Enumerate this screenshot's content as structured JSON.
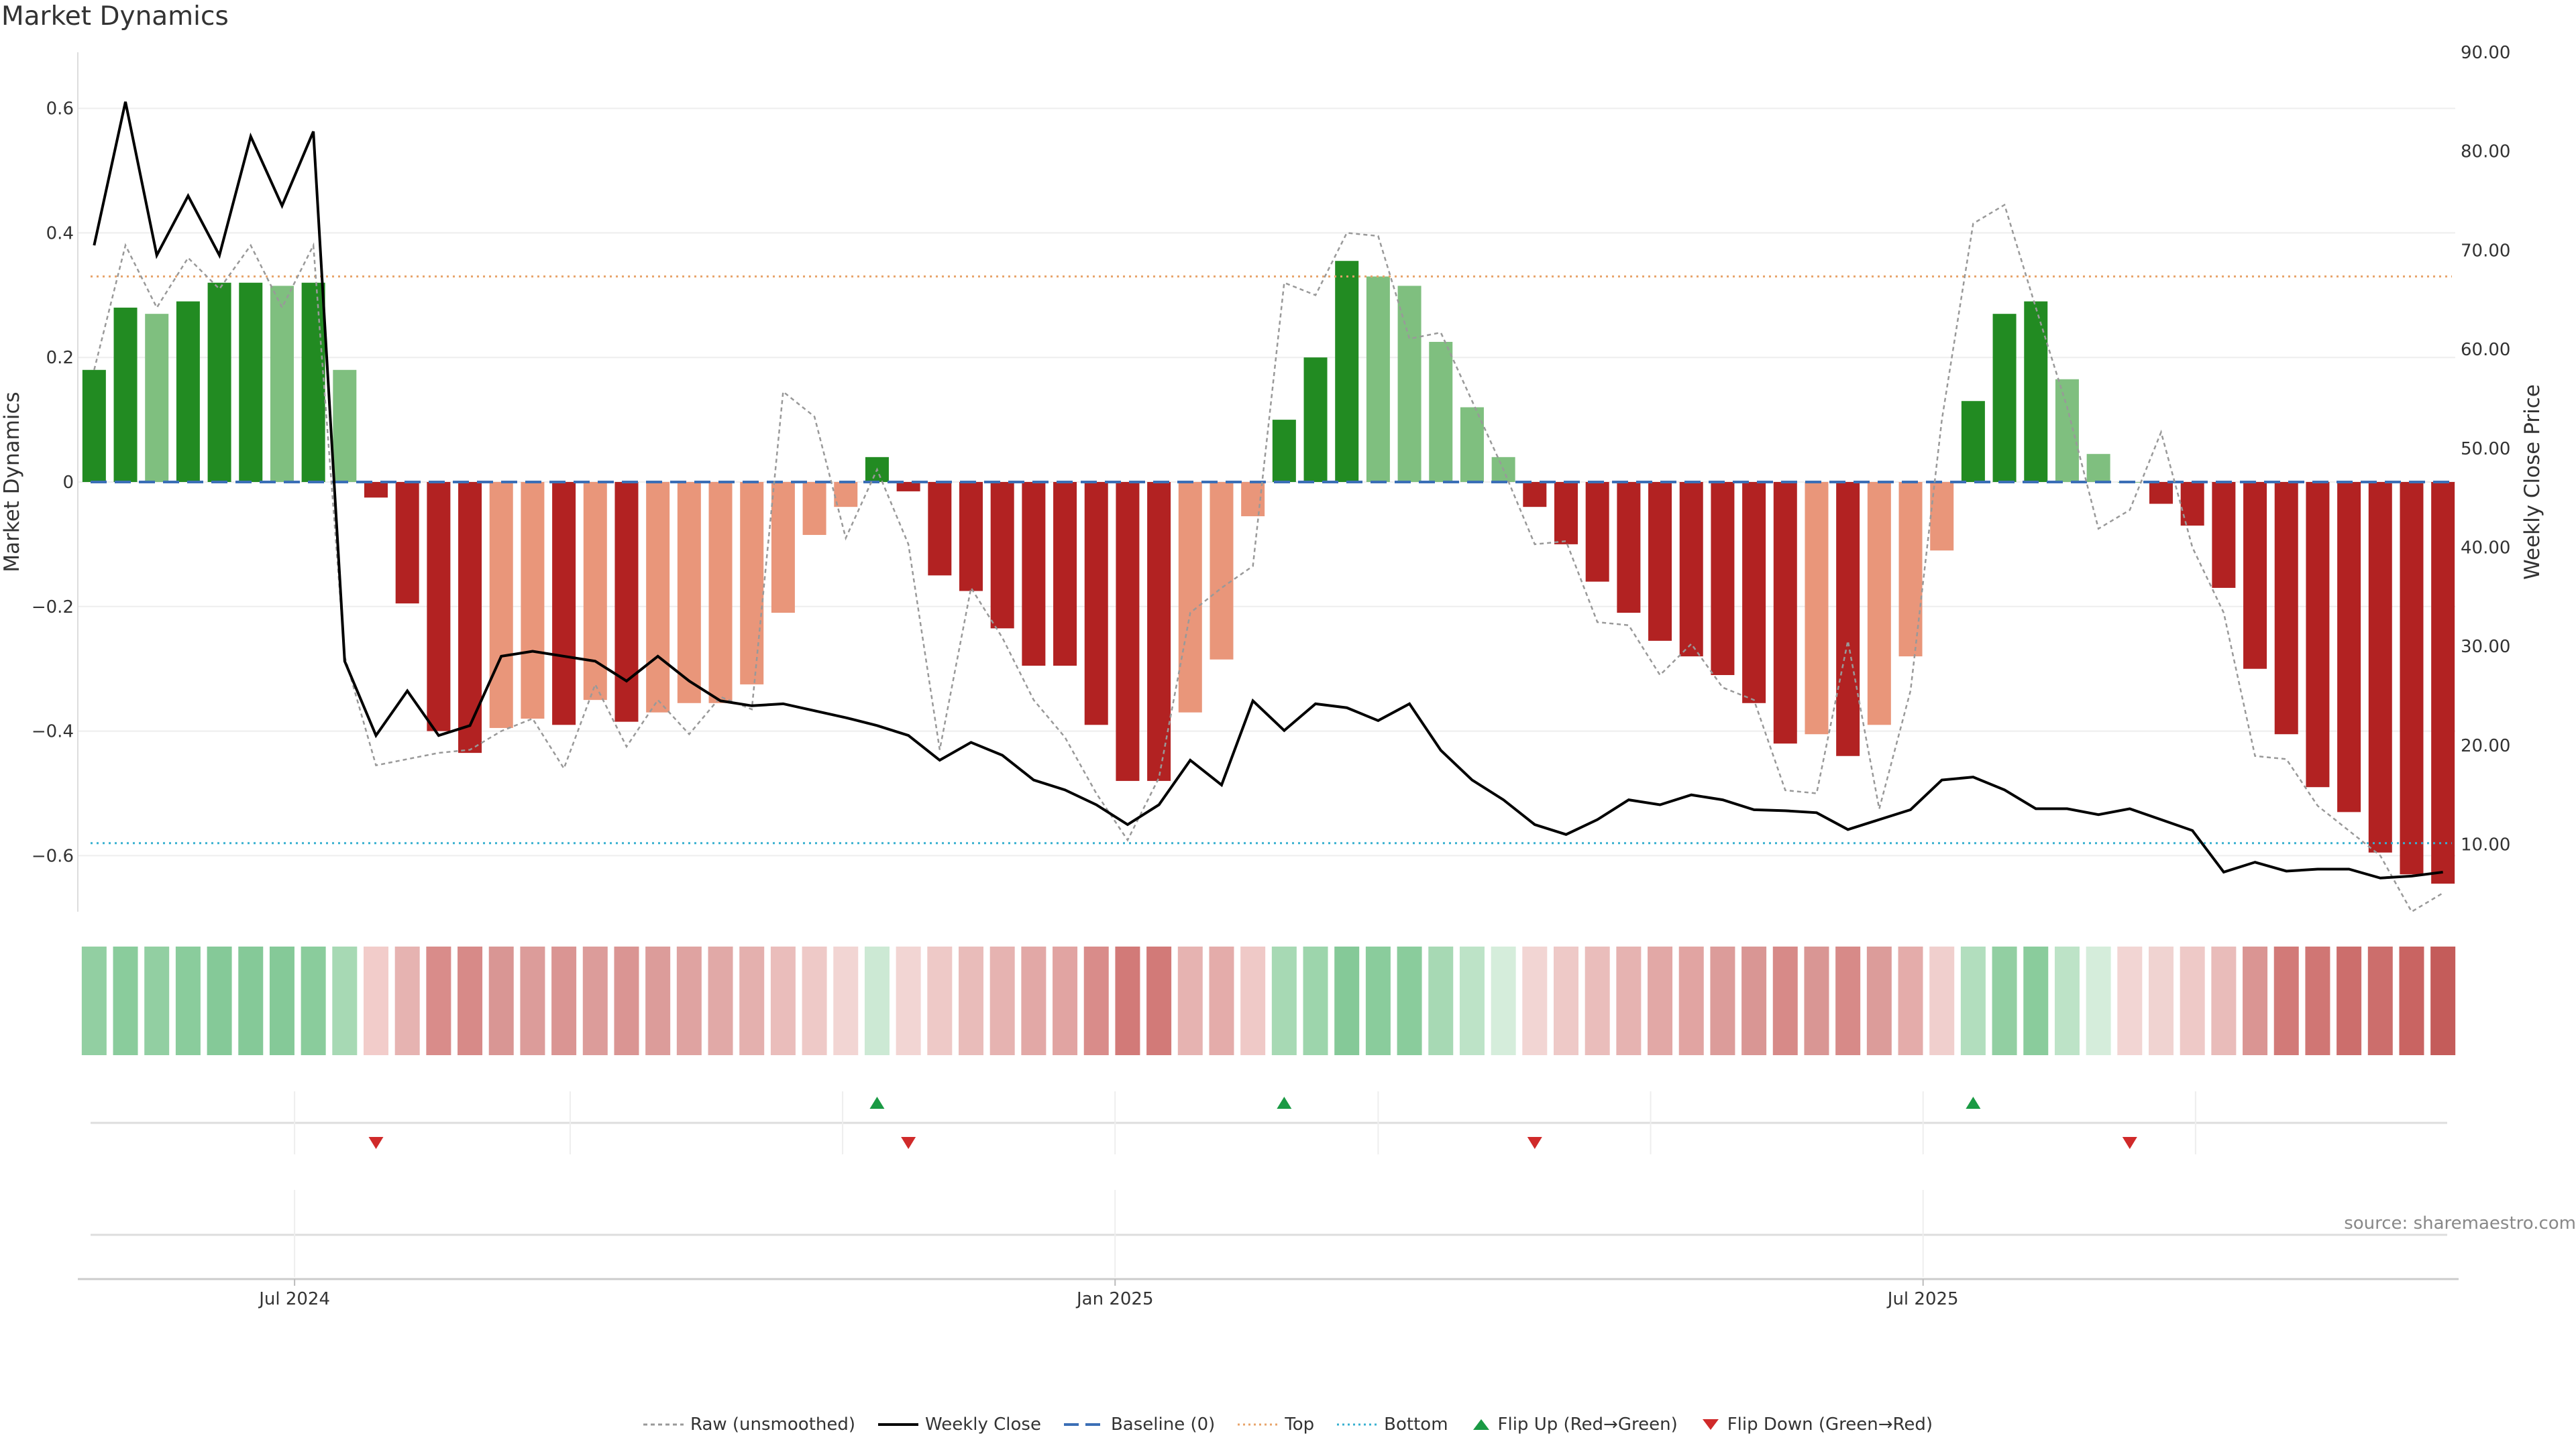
{
  "title": "Market Dynamics",
  "source": "source: sharemaestro.com",
  "chart_data": {
    "type": "bar",
    "title": "Market Dynamics",
    "ylabel": "Market Dynamics",
    "y2label": "Weekly Close Price",
    "ylim": [
      -0.69,
      0.69
    ],
    "y2lim": [
      3.2,
      90.0
    ],
    "yticks": [
      0.6,
      0.4,
      0.2,
      0,
      -0.2,
      -0.4,
      -0.6
    ],
    "yticklabels": [
      "0.6",
      "0.4",
      "0.2",
      "0",
      "−0.2",
      "−0.4",
      "−0.6"
    ],
    "y2ticks": [
      90,
      80,
      70,
      60,
      50,
      40,
      30,
      20,
      10
    ],
    "y2ticklabels": [
      "90.00",
      "80.00",
      "70.00",
      "60.00",
      "50.00",
      "40.00",
      "30.00",
      "20.00",
      "10.00"
    ],
    "xticklabels": [
      "Jul 2024",
      "Jan 2025",
      "Jul 2025"
    ],
    "xtick_index": [
      6.4,
      32.6,
      58.4
    ],
    "top_level": 0.33,
    "bottom_level": -0.58,
    "baseline": 0,
    "dynamics": [
      0.18,
      0.28,
      0.27,
      0.29,
      0.32,
      0.32,
      0.315,
      0.32,
      0.18,
      -0.025,
      -0.195,
      -0.4,
      -0.435,
      -0.395,
      -0.38,
      -0.39,
      -0.35,
      -0.385,
      -0.37,
      -0.355,
      -0.355,
      -0.325,
      -0.21,
      -0.085,
      -0.04,
      0.04,
      -0.015,
      -0.15,
      -0.175,
      -0.235,
      -0.295,
      -0.295,
      -0.39,
      -0.48,
      -0.48,
      -0.37,
      -0.285,
      -0.055,
      0.1,
      0.2,
      0.355,
      0.33,
      0.315,
      0.225,
      0.12,
      0.04,
      -0.04,
      -0.1,
      -0.16,
      -0.21,
      -0.255,
      -0.28,
      -0.31,
      -0.355,
      -0.42,
      -0.405,
      -0.44,
      -0.39,
      -0.28,
      -0.11,
      0.13,
      0.27,
      0.29,
      0.165,
      0.045,
      0.0,
      -0.035,
      -0.07,
      -0.17,
      -0.3,
      -0.405,
      -0.49,
      -0.53,
      -0.595,
      -0.63,
      -0.645
    ],
    "bar_colors": [
      "#228B22",
      "#228B22",
      "#7FBF7F",
      "#228B22",
      "#228B22",
      "#228B22",
      "#7FBF7F",
      "#228B22",
      "#7FBF7F",
      "#B22222",
      "#B22222",
      "#B22222",
      "#B22222",
      "#E9967A",
      "#E9967A",
      "#B22222",
      "#E9967A",
      "#B22222",
      "#E9967A",
      "#E9967A",
      "#E9967A",
      "#E9967A",
      "#E9967A",
      "#E9967A",
      "#E9967A",
      "#228B22",
      "#B22222",
      "#B22222",
      "#B22222",
      "#B22222",
      "#B22222",
      "#B22222",
      "#B22222",
      "#B22222",
      "#B22222",
      "#E9967A",
      "#E9967A",
      "#E9967A",
      "#228B22",
      "#228B22",
      "#228B22",
      "#7FBF7F",
      "#7FBF7F",
      "#7FBF7F",
      "#7FBF7F",
      "#7FBF7F",
      "#B22222",
      "#B22222",
      "#B22222",
      "#B22222",
      "#B22222",
      "#B22222",
      "#B22222",
      "#B22222",
      "#B22222",
      "#E9967A",
      "#B22222",
      "#E9967A",
      "#E9967A",
      "#E9967A",
      "#228B22",
      "#228B22",
      "#228B22",
      "#7FBF7F",
      "#7FBF7F",
      "#7FBF7F",
      "#B22222",
      "#B22222",
      "#B22222",
      "#B22222",
      "#B22222",
      "#B22222",
      "#B22222",
      "#B22222",
      "#B22222",
      "#B22222"
    ],
    "raw_unsmoothed": [
      0.18,
      0.38,
      0.28,
      0.36,
      0.31,
      0.38,
      0.28,
      0.38,
      -0.28,
      -0.455,
      -0.445,
      -0.435,
      -0.43,
      -0.4,
      -0.38,
      -0.46,
      -0.325,
      -0.425,
      -0.35,
      -0.405,
      -0.345,
      -0.365,
      0.145,
      0.105,
      -0.09,
      0.02,
      -0.1,
      -0.43,
      -0.17,
      -0.25,
      -0.35,
      -0.41,
      -0.5,
      -0.575,
      -0.475,
      -0.21,
      -0.17,
      -0.135,
      0.32,
      0.3,
      0.4,
      0.395,
      0.23,
      0.24,
      0.13,
      0.02,
      -0.1,
      -0.095,
      -0.225,
      -0.23,
      -0.31,
      -0.26,
      -0.33,
      -0.35,
      -0.495,
      -0.5,
      -0.255,
      -0.525,
      -0.335,
      0.1,
      0.415,
      0.445,
      0.28,
      0.12,
      -0.075,
      -0.045,
      0.08,
      -0.105,
      -0.21,
      -0.44,
      -0.445,
      -0.52,
      -0.56,
      -0.6,
      -0.69,
      -0.66
    ],
    "weekly_close": [
      70.5,
      85.0,
      69.5,
      75.5,
      69.5,
      81.5,
      74.5,
      82.0,
      28.5,
      21.0,
      25.5,
      21.0,
      22.0,
      29.0,
      29.5,
      29.0,
      28.5,
      26.5,
      29.0,
      26.5,
      24.5,
      24.0,
      24.2,
      23.5,
      22.8,
      22.0,
      21.0,
      18.5,
      20.3,
      19.0,
      16.5,
      15.5,
      14.0,
      12.0,
      14.0,
      18.5,
      16.0,
      24.5,
      21.5,
      24.2,
      23.8,
      22.5,
      24.2,
      19.5,
      16.5,
      14.5,
      12.0,
      11.0,
      12.5,
      14.5,
      14.0,
      15.0,
      14.5,
      13.5,
      13.4,
      13.2,
      11.5,
      12.5,
      13.5,
      16.5,
      16.8,
      15.5,
      13.6,
      13.6,
      13.0,
      13.6,
      12.5,
      11.4,
      7.2,
      8.2,
      7.3,
      7.5,
      7.5,
      6.6,
      6.8,
      7.2
    ],
    "heat_colors": [
      "#92CFA2",
      "#8ACC9C",
      "#92CFA2",
      "#8ACC9C",
      "#85C998",
      "#85C998",
      "#85C998",
      "#8ACC9C",
      "#A7D9B4",
      "#F2CCCA",
      "#E6B3B1",
      "#D98C8A",
      "#D78A88",
      "#D99694",
      "#DC9C9A",
      "#DA9593",
      "#DC9C9A",
      "#DA9593",
      "#DC9C9A",
      "#DFA3A1",
      "#E1A9A7",
      "#E4B0AE",
      "#EABDBB",
      "#EEC9C7",
      "#F2D5D3",
      "#CCE9D4",
      "#F2D5D3",
      "#EEC9C7",
      "#E9BCBA",
      "#E6B3B1",
      "#E2A8A6",
      "#E1A4A2",
      "#D98C8A",
      "#D27A78",
      "#D27A78",
      "#E6B3B1",
      "#E4ACAA",
      "#EFC9C7",
      "#A7D9B4",
      "#9DD5AC",
      "#85C998",
      "#8ACC9C",
      "#8ACC9C",
      "#A7D9B4",
      "#BDE3C7",
      "#D5EDDB",
      "#F2D5D3",
      "#EEC9C7",
      "#EABDBB",
      "#E6B3B1",
      "#E2A8A6",
      "#E1A4A2",
      "#DC9C9A",
      "#D99694",
      "#D78A88",
      "#D99694",
      "#D78A88",
      "#DC9C9A",
      "#E4ACAA",
      "#F0CFCD",
      "#B2DEBE",
      "#92CFA2",
      "#8ACC9C",
      "#BDE3C7",
      "#D5EDDB",
      "#F2D5D3",
      "#F0D3D1",
      "#EEC9C7",
      "#E9BCBA",
      "#DA9593",
      "#D27A78",
      "#D07674",
      "#CC6E6C",
      "#CC6E6C",
      "#C96462",
      "#C45C5A"
    ],
    "flips_up_index": [
      25,
      38,
      60
    ],
    "flips_down_index": [
      9,
      26,
      46,
      65
    ],
    "legend": [
      "Raw (unsmoothed)",
      "Weekly Close",
      "Baseline (0)",
      "Top",
      "Bottom",
      "Flip Up (Red→Green)",
      "Flip Down (Green→Red)"
    ]
  },
  "colors": {
    "green_strong": "#228B22",
    "green_light": "#7FBF7F",
    "red_strong": "#B22222",
    "red_light": "#E9967A",
    "baseline": "#3B6FB6",
    "top": "#E8A36A",
    "bottom": "#38B0D0",
    "flip_up": "#1A9A44",
    "flip_down": "#D02A2A"
  }
}
